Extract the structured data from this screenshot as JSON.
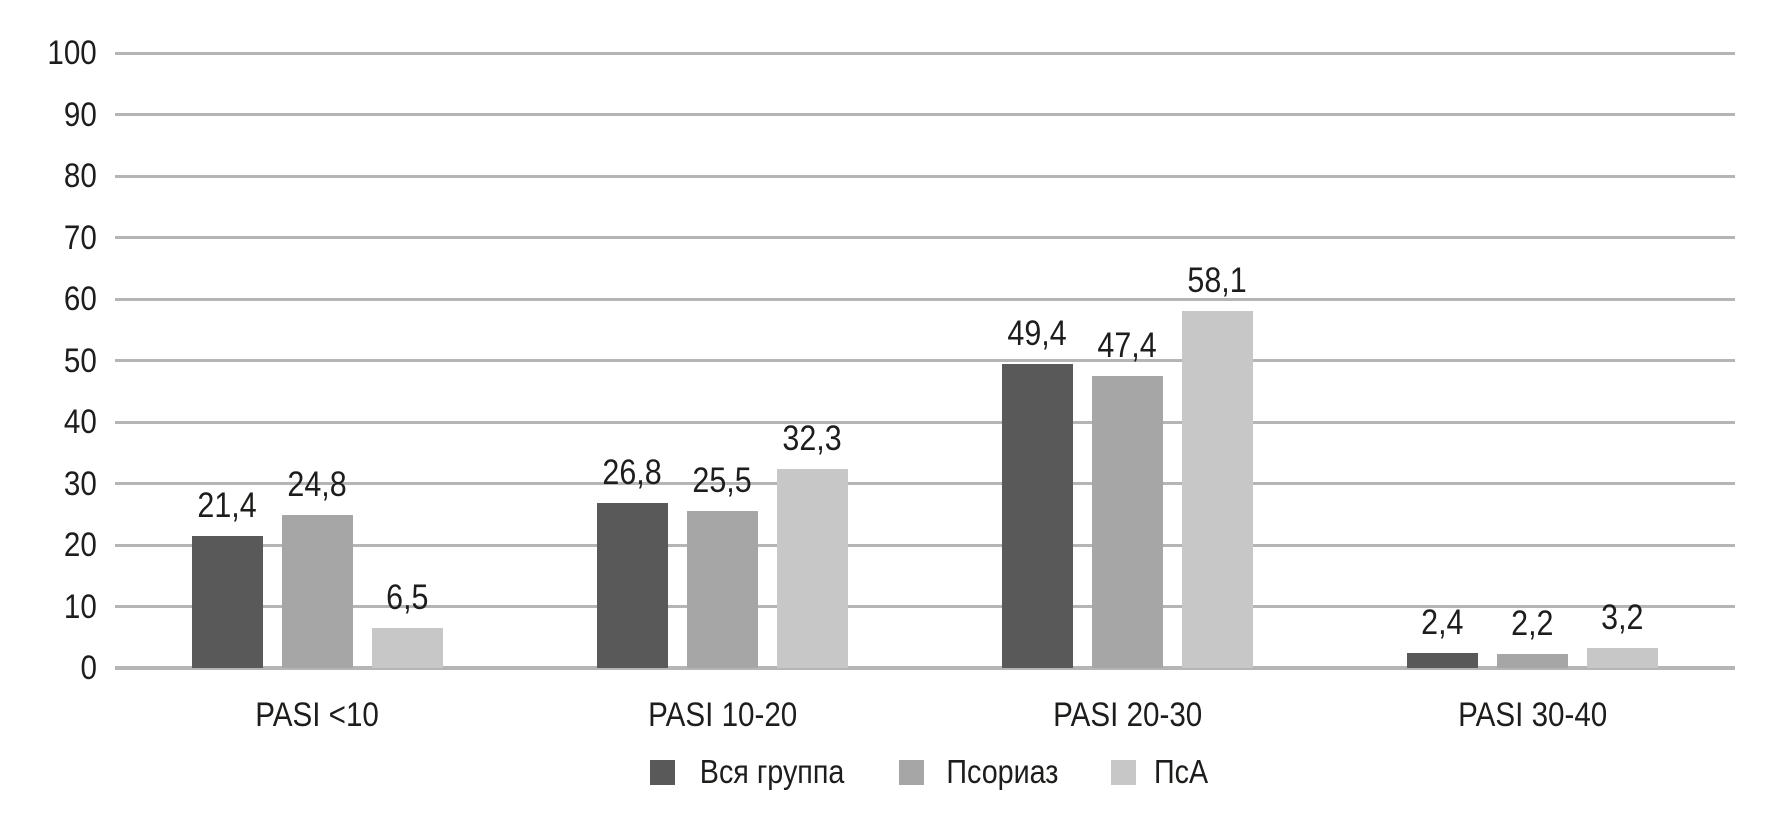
{
  "chart_data": {
    "type": "bar",
    "categories": [
      "PASI <10",
      "PASI 10-20",
      "PASI 20-30",
      "PASI 30-40"
    ],
    "series": [
      {
        "name": "Вся группа",
        "color": "#595959",
        "values": [
          21.4,
          26.8,
          49.4,
          2.4
        ]
      },
      {
        "name": "Псориаз",
        "color": "#a6a6a6",
        "values": [
          24.8,
          25.5,
          47.4,
          2.2
        ]
      },
      {
        "name": "ПсА",
        "color": "#c7c7c7",
        "values": [
          6.5,
          32.3,
          58.1,
          3.2
        ]
      }
    ],
    "ylim": [
      0,
      100
    ],
    "yticks": [
      0,
      10,
      20,
      30,
      40,
      50,
      60,
      70,
      80,
      90,
      100
    ],
    "grid": true,
    "legend_position": "bottom",
    "value_labels": true,
    "decimal_separator": ",",
    "colors": {
      "gridline": "#b5b5b5",
      "text": "#1d1d1b",
      "background": "#ffffff"
    }
  }
}
